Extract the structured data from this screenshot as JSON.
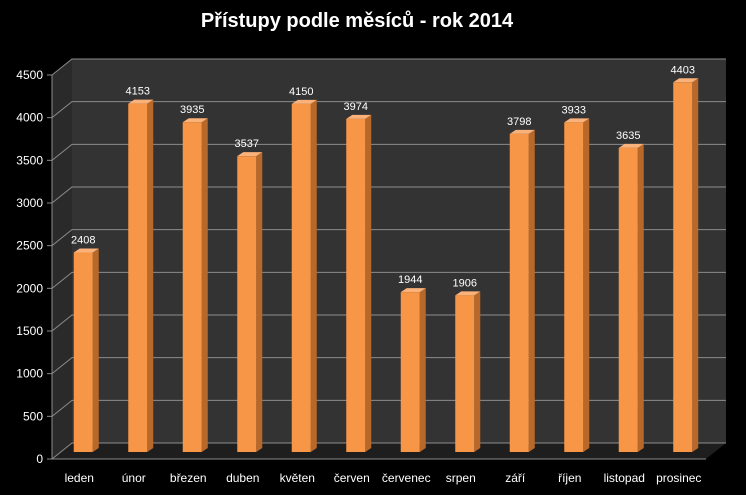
{
  "chart_data": {
    "type": "bar",
    "title": "Přístupy podle měsíců - rok 2014",
    "categories": [
      "leden",
      "únor",
      "březen",
      "duben",
      "květen",
      "červen",
      "červenec",
      "srpen",
      "září",
      "říjen",
      "listopad",
      "prosinec"
    ],
    "values": [
      2408,
      4153,
      3935,
      3537,
      4150,
      3974,
      1944,
      1906,
      3798,
      3933,
      3635,
      4403
    ],
    "yticks": [
      "0",
      "500",
      "1000",
      "1500",
      "2000",
      "2500",
      "3000",
      "3500",
      "4000",
      "4500"
    ],
    "ylim": [
      0,
      4500
    ],
    "grid": true,
    "legend": "none",
    "colors": {
      "bar_front": "#f79646",
      "bar_side": "#b8692a",
      "bar_top": "#fbb27a",
      "background": "#000000",
      "plot_wall": "#333333",
      "plot_floor": "#1e1e1e",
      "grid": "#8c8c8c",
      "text": "#ffffff"
    }
  }
}
